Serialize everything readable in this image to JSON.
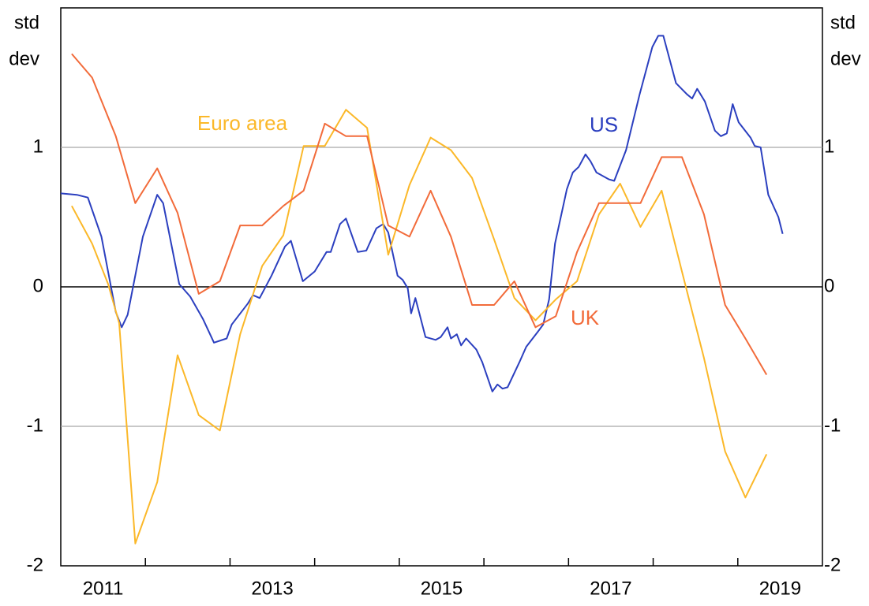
{
  "chart_data": {
    "type": "line",
    "y_label_lines": [
      "std",
      "dev"
    ],
    "y2_label_lines": [
      "std",
      "dev"
    ],
    "xlim": [
      2011,
      2020
    ],
    "xticks": [
      2012,
      2013,
      2014,
      2015,
      2016,
      2017,
      2018,
      2019
    ],
    "xtick_labels": [
      {
        "value": 2011.5,
        "label": "2011"
      },
      {
        "value": 2013.5,
        "label": "2013"
      },
      {
        "value": 2015.5,
        "label": "2015"
      },
      {
        "value": 2017.5,
        "label": "2017"
      },
      {
        "value": 2019.5,
        "label": "2019"
      }
    ],
    "ylim": [
      -2,
      2
    ],
    "yticks": [
      -2,
      -1,
      0,
      1
    ],
    "y2lim": [
      -2,
      2
    ],
    "y2ticks": [
      -2,
      -1,
      0,
      1
    ],
    "grid": true,
    "series": [
      {
        "name": "US",
        "color": "#2b3fbf",
        "x": [
          2011.0,
          2011.19,
          2011.32,
          2011.48,
          2011.65,
          2011.72,
          2011.79,
          2011.97,
          2012.14,
          2012.21,
          2012.4,
          2012.53,
          2012.68,
          2012.81,
          2012.96,
          2013.02,
          2013.21,
          2013.27,
          2013.35,
          2013.49,
          2013.65,
          2013.72,
          2013.86,
          2014.0,
          2014.14,
          2014.19,
          2014.3,
          2014.37,
          2014.51,
          2014.61,
          2014.73,
          2014.81,
          2014.87,
          2014.98,
          2015.04,
          2015.1,
          2015.14,
          2015.19,
          2015.31,
          2015.43,
          2015.49,
          2015.57,
          2015.61,
          2015.68,
          2015.73,
          2015.79,
          2015.91,
          2015.98,
          2016.1,
          2016.16,
          2016.22,
          2016.28,
          2016.42,
          2016.5,
          2016.64,
          2016.7,
          2016.77,
          2016.84,
          2016.98,
          2017.05,
          2017.12,
          2017.2,
          2017.26,
          2017.33,
          2017.48,
          2017.54,
          2017.68,
          2017.84,
          2017.99,
          2018.06,
          2018.12,
          2018.27,
          2018.4,
          2018.46,
          2018.52,
          2018.61,
          2018.73,
          2018.8,
          2018.87,
          2018.94,
          2019.01,
          2019.15,
          2019.2,
          2019.27,
          2019.36,
          2019.48,
          2019.53
        ],
        "values": [
          0.67,
          0.66,
          0.64,
          0.36,
          -0.18,
          -0.29,
          -0.2,
          0.36,
          0.66,
          0.6,
          0.02,
          -0.07,
          -0.23,
          -0.4,
          -0.37,
          -0.27,
          -0.12,
          -0.06,
          -0.08,
          0.08,
          0.29,
          0.33,
          0.04,
          0.11,
          0.25,
          0.25,
          0.45,
          0.49,
          0.25,
          0.26,
          0.42,
          0.45,
          0.39,
          0.08,
          0.05,
          -0.01,
          -0.19,
          -0.08,
          -0.36,
          -0.38,
          -0.36,
          -0.29,
          -0.37,
          -0.34,
          -0.42,
          -0.37,
          -0.45,
          -0.54,
          -0.75,
          -0.7,
          -0.73,
          -0.72,
          -0.54,
          -0.43,
          -0.32,
          -0.27,
          -0.09,
          0.31,
          0.7,
          0.82,
          0.86,
          0.95,
          0.9,
          0.82,
          0.77,
          0.76,
          0.98,
          1.38,
          1.72,
          1.8,
          1.8,
          1.46,
          1.38,
          1.35,
          1.42,
          1.33,
          1.12,
          1.08,
          1.1,
          1.31,
          1.18,
          1.07,
          1.01,
          1.0,
          0.66,
          0.5,
          0.38
        ]
      },
      {
        "name": "Euro area",
        "color": "#fbb829",
        "x": [
          2011.13,
          2011.37,
          2011.56,
          2011.69,
          2011.88,
          2012.14,
          2012.38,
          2012.63,
          2012.88,
          2013.12,
          2013.38,
          2013.63,
          2013.87,
          2014.12,
          2014.37,
          2014.62,
          2014.87,
          2015.12,
          2015.37,
          2015.61,
          2015.86,
          2016.12,
          2016.36,
          2016.61,
          2016.85,
          2017.1,
          2017.36,
          2017.61,
          2017.85,
          2018.1,
          2018.34,
          2018.6,
          2018.85,
          2019.09,
          2019.34
        ],
        "values": [
          0.58,
          0.31,
          0.02,
          -0.26,
          -1.84,
          -1.4,
          -0.49,
          -0.92,
          -1.03,
          -0.34,
          0.15,
          0.37,
          1.01,
          1.01,
          1.27,
          1.14,
          0.23,
          0.73,
          1.07,
          0.98,
          0.78,
          0.34,
          -0.08,
          -0.24,
          -0.09,
          0.04,
          0.52,
          0.74,
          0.43,
          0.69,
          0.11,
          -0.51,
          -1.18,
          -1.51,
          -1.2
        ]
      },
      {
        "name": "UK",
        "color": "#f26b3a",
        "x": [
          2011.13,
          2011.37,
          2011.65,
          2011.88,
          2012.14,
          2012.38,
          2012.63,
          2012.88,
          2013.12,
          2013.38,
          2013.63,
          2013.87,
          2014.12,
          2014.37,
          2014.62,
          2014.87,
          2015.12,
          2015.37,
          2015.61,
          2015.86,
          2016.12,
          2016.36,
          2016.61,
          2016.85,
          2017.1,
          2017.36,
          2017.61,
          2017.85,
          2018.1,
          2018.34,
          2018.6,
          2018.85,
          2019.09,
          2019.34
        ],
        "values": [
          1.67,
          1.5,
          1.08,
          0.6,
          0.85,
          0.53,
          -0.05,
          0.04,
          0.44,
          0.44,
          0.58,
          0.69,
          1.17,
          1.08,
          1.08,
          0.44,
          0.36,
          0.69,
          0.36,
          -0.13,
          -0.13,
          0.04,
          -0.29,
          -0.21,
          0.25,
          0.6,
          0.6,
          0.6,
          0.93,
          0.93,
          0.52,
          -0.13,
          -0.37,
          -0.63
        ]
      }
    ]
  }
}
